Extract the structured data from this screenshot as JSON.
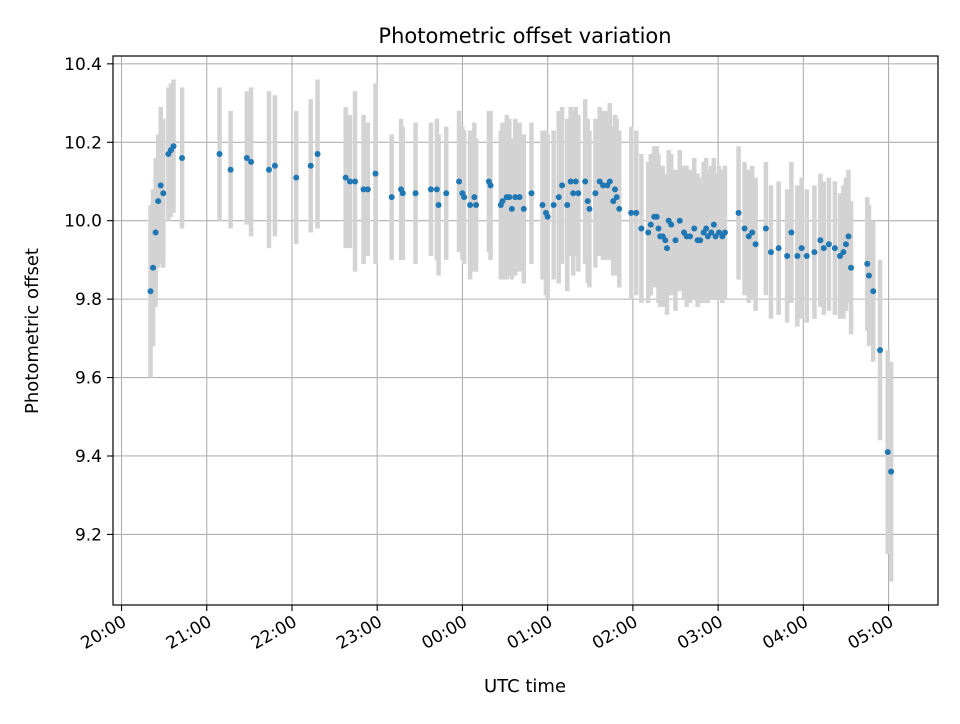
{
  "colors": {
    "marker": "#1f77b4",
    "errorbar": "#d3d3d3",
    "grid": "#b0b0b0",
    "axes": "#000000"
  },
  "chart_data": {
    "type": "scatter",
    "title": "Photometric offset variation",
    "xlabel": "UTC time",
    "ylabel": "Photometric offset",
    "x_unit": "hours since 20:00 UTC",
    "xlim": [
      -0.1,
      9.58
    ],
    "ylim": [
      9.02,
      10.42
    ],
    "grid": true,
    "legend": "none",
    "xticks": [
      {
        "x": 0,
        "label": "20:00"
      },
      {
        "x": 1,
        "label": "21:00"
      },
      {
        "x": 2,
        "label": "22:00"
      },
      {
        "x": 3,
        "label": "23:00"
      },
      {
        "x": 4,
        "label": "00:00"
      },
      {
        "x": 5,
        "label": "01:00"
      },
      {
        "x": 6,
        "label": "02:00"
      },
      {
        "x": 7,
        "label": "03:00"
      },
      {
        "x": 8,
        "label": "04:00"
      },
      {
        "x": 9,
        "label": "05:00"
      }
    ],
    "yticks": [
      {
        "y": 9.2,
        "label": "9.2"
      },
      {
        "y": 9.4,
        "label": "9.4"
      },
      {
        "y": 9.6,
        "label": "9.6"
      },
      {
        "y": 9.8,
        "label": "9.8"
      },
      {
        "y": 10.0,
        "label": "10.0"
      },
      {
        "y": 10.2,
        "label": "10.2"
      },
      {
        "y": 10.4,
        "label": "10.4"
      }
    ],
    "points": [
      [
        0.34,
        9.82,
        0.22
      ],
      [
        0.37,
        9.88,
        0.2
      ],
      [
        0.4,
        9.97,
        0.19
      ],
      [
        0.43,
        10.05,
        0.17
      ],
      [
        0.46,
        10.09,
        0.2
      ],
      [
        0.49,
        10.07,
        0.19
      ],
      [
        0.55,
        10.17,
        0.17
      ],
      [
        0.58,
        10.18,
        0.17
      ],
      [
        0.61,
        10.19,
        0.17
      ],
      [
        0.71,
        10.16,
        0.18
      ],
      [
        1.15,
        10.17,
        0.17
      ],
      [
        1.28,
        10.13,
        0.15
      ],
      [
        1.47,
        10.16,
        0.17
      ],
      [
        1.52,
        10.15,
        0.19
      ],
      [
        1.73,
        10.13,
        0.2
      ],
      [
        1.8,
        10.14,
        0.18
      ],
      [
        2.05,
        10.11,
        0.17
      ],
      [
        2.22,
        10.14,
        0.17
      ],
      [
        2.3,
        10.17,
        0.19
      ],
      [
        2.63,
        10.11,
        0.18
      ],
      [
        2.68,
        10.1,
        0.17
      ],
      [
        2.74,
        10.1,
        0.23
      ],
      [
        2.84,
        10.08,
        0.19
      ],
      [
        2.89,
        10.08,
        0.17
      ],
      [
        2.98,
        10.12,
        0.23
      ],
      [
        3.17,
        10.06,
        0.16
      ],
      [
        3.28,
        10.08,
        0.18
      ],
      [
        3.3,
        10.07,
        0.17
      ],
      [
        3.45,
        10.07,
        0.18
      ],
      [
        3.63,
        10.08,
        0.17
      ],
      [
        3.7,
        10.08,
        0.18
      ],
      [
        3.72,
        10.04,
        0.18
      ],
      [
        3.81,
        10.07,
        0.17
      ],
      [
        3.96,
        10.1,
        0.18
      ],
      [
        4.0,
        10.07,
        0.17
      ],
      [
        4.02,
        10.06,
        0.17
      ],
      [
        4.09,
        10.04,
        0.19
      ],
      [
        4.14,
        10.06,
        0.19
      ],
      [
        4.16,
        10.04,
        0.17
      ],
      [
        4.31,
        10.1,
        0.18
      ],
      [
        4.33,
        10.09,
        0.19
      ],
      [
        4.45,
        10.04,
        0.19
      ],
      [
        4.47,
        10.05,
        0.2
      ],
      [
        4.52,
        10.06,
        0.21
      ],
      [
        4.55,
        10.06,
        0.2
      ],
      [
        4.58,
        10.03,
        0.18
      ],
      [
        4.62,
        10.06,
        0.2
      ],
      [
        4.67,
        10.06,
        0.19
      ],
      [
        4.72,
        10.03,
        0.19
      ],
      [
        4.81,
        10.07,
        0.18
      ],
      [
        4.94,
        10.04,
        0.19
      ],
      [
        4.98,
        10.02,
        0.21
      ],
      [
        5.0,
        10.01,
        0.21
      ],
      [
        5.07,
        10.04,
        0.19
      ],
      [
        5.13,
        10.06,
        0.22
      ],
      [
        5.17,
        10.09,
        0.2
      ],
      [
        5.23,
        10.04,
        0.22
      ],
      [
        5.27,
        10.1,
        0.19
      ],
      [
        5.3,
        10.07,
        0.21
      ],
      [
        5.33,
        10.1,
        0.19
      ],
      [
        5.36,
        10.07,
        0.2
      ],
      [
        5.44,
        10.1,
        0.21
      ],
      [
        5.47,
        10.05,
        0.21
      ],
      [
        5.49,
        10.03,
        0.2
      ],
      [
        5.56,
        10.07,
        0.19
      ],
      [
        5.61,
        10.1,
        0.19
      ],
      [
        5.65,
        10.09,
        0.19
      ],
      [
        5.7,
        10.09,
        0.19
      ],
      [
        5.73,
        10.1,
        0.2
      ],
      [
        5.77,
        10.05,
        0.19
      ],
      [
        5.79,
        10.08,
        0.19
      ],
      [
        5.81,
        10.06,
        0.2
      ],
      [
        5.84,
        10.03,
        0.2
      ],
      [
        5.98,
        10.02,
        0.22
      ],
      [
        6.04,
        10.02,
        0.21
      ],
      [
        6.1,
        9.98,
        0.19
      ],
      [
        6.18,
        9.97,
        0.18
      ],
      [
        6.21,
        9.99,
        0.18
      ],
      [
        6.25,
        10.01,
        0.18
      ],
      [
        6.28,
        10.01,
        0.18
      ],
      [
        6.3,
        9.98,
        0.19
      ],
      [
        6.32,
        9.96,
        0.18
      ],
      [
        6.35,
        9.96,
        0.18
      ],
      [
        6.38,
        9.95,
        0.17
      ],
      [
        6.4,
        9.93,
        0.17
      ],
      [
        6.42,
        10.0,
        0.18
      ],
      [
        6.45,
        9.99,
        0.18
      ],
      [
        6.5,
        9.95,
        0.18
      ],
      [
        6.55,
        10.0,
        0.18
      ],
      [
        6.6,
        9.97,
        0.17
      ],
      [
        6.63,
        9.96,
        0.18
      ],
      [
        6.67,
        9.96,
        0.17
      ],
      [
        6.72,
        9.98,
        0.18
      ],
      [
        6.76,
        9.95,
        0.17
      ],
      [
        6.79,
        9.95,
        0.16
      ],
      [
        6.83,
        9.97,
        0.18
      ],
      [
        6.86,
        9.98,
        0.18
      ],
      [
        6.88,
        9.96,
        0.17
      ],
      [
        6.92,
        9.97,
        0.17
      ],
      [
        6.95,
        9.99,
        0.17
      ],
      [
        6.97,
        9.96,
        0.16
      ],
      [
        7.01,
        9.97,
        0.17
      ],
      [
        7.05,
        9.96,
        0.17
      ],
      [
        7.08,
        9.97,
        0.17
      ],
      [
        7.24,
        10.02,
        0.17
      ],
      [
        7.31,
        9.98,
        0.17
      ],
      [
        7.36,
        9.96,
        0.17
      ],
      [
        7.4,
        9.97,
        0.17
      ],
      [
        7.44,
        9.94,
        0.17
      ],
      [
        7.56,
        9.98,
        0.17
      ],
      [
        7.62,
        9.92,
        0.17
      ],
      [
        7.71,
        9.93,
        0.17
      ],
      [
        7.81,
        9.91,
        0.17
      ],
      [
        7.86,
        9.97,
        0.18
      ],
      [
        7.93,
        9.91,
        0.18
      ],
      [
        7.98,
        9.93,
        0.18
      ],
      [
        8.04,
        9.91,
        0.17
      ],
      [
        8.13,
        9.92,
        0.17
      ],
      [
        8.2,
        9.95,
        0.17
      ],
      [
        8.24,
        9.93,
        0.17
      ],
      [
        8.3,
        9.94,
        0.17
      ],
      [
        8.37,
        9.93,
        0.17
      ],
      [
        8.43,
        9.91,
        0.16
      ],
      [
        8.47,
        9.92,
        0.17
      ],
      [
        8.5,
        9.94,
        0.17
      ],
      [
        8.53,
        9.96,
        0.17
      ],
      [
        8.56,
        9.88,
        0.17
      ],
      [
        8.75,
        9.89,
        0.17
      ],
      [
        8.77,
        9.86,
        0.18
      ],
      [
        8.82,
        9.82,
        0.18
      ],
      [
        8.9,
        9.67,
        0.23
      ],
      [
        8.99,
        9.41,
        0.26
      ],
      [
        9.03,
        9.36,
        0.28
      ]
    ]
  }
}
